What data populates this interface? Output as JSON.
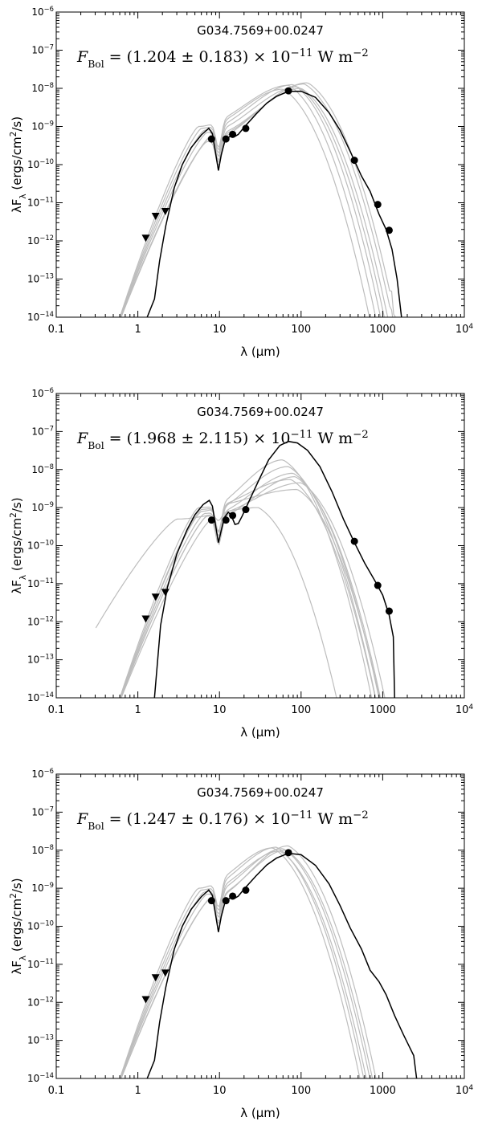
{
  "figure": {
    "panels": [
      {
        "label": "G034.7569+00.0247",
        "flux": {
          "symbol": "F",
          "sub": "Bol",
          "prefix": " = (1.204 ± 0.183) × 10",
          "exp": "−11",
          "units": " W m",
          "units_exp": "−2"
        }
      },
      {
        "label": "G034.7569+00.0247",
        "flux": {
          "symbol": "F",
          "sub": "Bol",
          "prefix": " = (1.968 ± 2.115) × 10",
          "exp": "−11",
          "units": " W m",
          "units_exp": "−2"
        }
      },
      {
        "label": "G034.7569+00.0247",
        "flux": {
          "symbol": "F",
          "sub": "Bol",
          "prefix": " = (1.247 ± 0.176) × 10",
          "exp": "−11",
          "units": " W m",
          "units_exp": "−2"
        }
      }
    ],
    "xlabel": "λ (μm)",
    "ylabel": "λF_λ (ergs/cm²/s)"
  },
  "chart_data": [
    {
      "type": "line",
      "title": "G034.7569+00.0247",
      "xscale": "log",
      "yscale": "log",
      "xlim": [
        0.1,
        10000
      ],
      "ylim": [
        1e-14,
        1e-06
      ],
      "xticks": [
        0.1,
        1,
        10,
        100,
        1000,
        10000
      ],
      "yticks": [
        1e-14,
        1e-13,
        1e-12,
        1e-11,
        1e-10,
        1e-09,
        1e-08,
        1e-07,
        1e-06
      ],
      "xlabel": "λ (μm)",
      "ylabel": "λF_λ (ergs/cm²/s)",
      "best_fit_color": "#000000",
      "model_color": "#bdbdbd",
      "detections": [
        [
          8.0,
          4.7e-10
        ],
        [
          12.0,
          4.7e-10
        ],
        [
          14.5,
          6.2e-10
        ],
        [
          21.0,
          8.9e-10
        ],
        [
          70.0,
          8.6e-09
        ],
        [
          450,
          1.3e-10
        ],
        [
          870,
          9e-12
        ],
        [
          1200,
          1.9e-12
        ]
      ],
      "upper_limits": [
        [
          1.25,
          1.2e-12
        ],
        [
          1.65,
          4.5e-12
        ],
        [
          2.17,
          6e-12
        ]
      ],
      "best_fit": [
        [
          1.3,
          1e-14
        ],
        [
          1.6,
          3e-14
        ],
        [
          1.85,
          3e-13
        ],
        [
          2.2,
          2.5e-12
        ],
        [
          2.8,
          2.5e-11
        ],
        [
          3.5,
          1e-10
        ],
        [
          4.5,
          2.8e-10
        ],
        [
          6.0,
          6e-10
        ],
        [
          7.4,
          9e-10
        ],
        [
          8.2,
          6.5e-10
        ],
        [
          9.7,
          7e-11
        ],
        [
          10.5,
          1.8e-10
        ],
        [
          11.6,
          4e-10
        ],
        [
          12.6,
          5e-10
        ],
        [
          14.0,
          5.8e-10
        ],
        [
          15.5,
          5.5e-10
        ],
        [
          17.0,
          6.2e-10
        ],
        [
          20.0,
          9.5e-10
        ],
        [
          28,
          2.1e-09
        ],
        [
          38,
          4.1e-09
        ],
        [
          50,
          6.2e-09
        ],
        [
          70,
          8.3e-09
        ],
        [
          100,
          8.4e-09
        ],
        [
          150,
          5.8e-09
        ],
        [
          220,
          2.3e-09
        ],
        [
          300,
          8e-10
        ],
        [
          400,
          2.2e-10
        ],
        [
          550,
          5e-11
        ],
        [
          700,
          2e-11
        ],
        [
          900,
          5e-12
        ],
        [
          1100,
          2e-12
        ],
        [
          1300,
          6e-13
        ],
        [
          1500,
          1e-13
        ],
        [
          1700,
          1e-14
        ]
      ],
      "models": [
        {
          "peak_x": 90,
          "peak_y": 1.1e-08,
          "nir_x": 7,
          "nir_y": 7e-10,
          "scale": 0.95
        },
        {
          "peak_x": 60,
          "peak_y": 9.5e-09,
          "nir_x": 6,
          "nir_y": 9e-10,
          "scale": 1.05
        },
        {
          "peak_x": 120,
          "peak_y": 1.4e-08,
          "nir_x": 7.5,
          "nir_y": 5e-10,
          "scale": 1.0
        },
        {
          "peak_x": 80,
          "peak_y": 1.25e-08,
          "nir_x": 6.5,
          "nir_y": 8e-10,
          "scale": 0.9
        },
        {
          "peak_x": 100,
          "peak_y": 1e-08,
          "nir_x": 8,
          "nir_y": 6e-10,
          "scale": 1.1
        },
        {
          "peak_x": 70,
          "peak_y": 1.2e-08,
          "nir_x": 5.5,
          "nir_y": 1e-09,
          "scale": 1.0
        },
        {
          "peak_x": 110,
          "peak_y": 1.3e-08,
          "nir_x": 7,
          "nir_y": 4e-10,
          "scale": 0.95
        }
      ]
    },
    {
      "type": "line",
      "title": "G034.7569+00.0247",
      "xscale": "log",
      "yscale": "log",
      "xlim": [
        0.1,
        10000
      ],
      "ylim": [
        1e-14,
        1e-06
      ],
      "xticks": [
        0.1,
        1,
        10,
        100,
        1000,
        10000
      ],
      "yticks": [
        1e-14,
        1e-13,
        1e-12,
        1e-11,
        1e-10,
        1e-09,
        1e-08,
        1e-07,
        1e-06
      ],
      "xlabel": "λ (μm)",
      "ylabel": "λF_λ (ergs/cm²/s)",
      "best_fit_color": "#000000",
      "model_color": "#bdbdbd",
      "detections": [
        [
          8.0,
          4.7e-10
        ],
        [
          12.0,
          4.7e-10
        ],
        [
          14.5,
          6.2e-10
        ],
        [
          21.0,
          8.9e-10
        ],
        [
          450,
          1.3e-10
        ],
        [
          870,
          9e-12
        ],
        [
          1200,
          1.9e-12
        ]
      ],
      "upper_limits": [
        [
          1.25,
          1.2e-12
        ],
        [
          1.65,
          4.5e-12
        ],
        [
          2.17,
          6e-12
        ]
      ],
      "best_fit": [
        [
          1.6,
          1e-14
        ],
        [
          1.9,
          8e-13
        ],
        [
          2.3,
          8e-12
        ],
        [
          3.0,
          6e-11
        ],
        [
          4.0,
          2.6e-10
        ],
        [
          5.0,
          6.5e-10
        ],
        [
          6.3,
          1.2e-09
        ],
        [
          7.5,
          1.55e-09
        ],
        [
          8.2,
          1.1e-09
        ],
        [
          9.7,
          1.2e-10
        ],
        [
          10.5,
          2.5e-10
        ],
        [
          11.5,
          5.5e-10
        ],
        [
          12.8,
          7.5e-10
        ],
        [
          13.8,
          6.5e-10
        ],
        [
          15.5,
          3.6e-10
        ],
        [
          17.0,
          3.8e-10
        ],
        [
          19.0,
          6e-10
        ],
        [
          22,
          1.2e-09
        ],
        [
          30,
          5e-09
        ],
        [
          40,
          1.8e-08
        ],
        [
          55,
          4.3e-08
        ],
        [
          70,
          5.5e-08
        ],
        [
          90,
          5e-08
        ],
        [
          120,
          3.2e-08
        ],
        [
          170,
          1.2e-08
        ],
        [
          240,
          2.6e-09
        ],
        [
          330,
          5e-10
        ],
        [
          450,
          1.2e-10
        ],
        [
          600,
          3.5e-11
        ],
        [
          800,
          1.2e-11
        ],
        [
          1000,
          5e-12
        ],
        [
          1200,
          1.5e-12
        ],
        [
          1350,
          4e-13
        ],
        [
          1400,
          1e-14
        ]
      ],
      "models": [
        {
          "peak_x": 75,
          "peak_y": 5.5e-09,
          "nir_x": 6,
          "nir_y": 9e-10,
          "scale": 1.2
        },
        {
          "peak_x": 80,
          "peak_y": 8e-09,
          "nir_x": 7,
          "nir_y": 6e-10,
          "scale": 1.0
        },
        {
          "peak_x": 90,
          "peak_y": 3e-09,
          "nir_x": 5.5,
          "nir_y": 1e-09,
          "scale": 1.3
        },
        {
          "peak_x": 70,
          "peak_y": 1.2e-08,
          "nir_x": 6.5,
          "nir_y": 7e-10,
          "scale": 1.1
        },
        {
          "peak_x": 85,
          "peak_y": 6.5e-09,
          "nir_x": 8,
          "nir_y": 5e-10,
          "scale": 0.9
        },
        {
          "peak_x": 60,
          "peak_y": 1.8e-08,
          "nir_x": 6,
          "nir_y": 8e-10,
          "scale": 1.0
        },
        {
          "peak_x": 100,
          "peak_y": 4.5e-09,
          "nir_x": 7,
          "nir_y": 6e-10,
          "scale": 1.15
        },
        {
          "peak_x": 30,
          "peak_y": 1e-09,
          "nir_x": 3,
          "nir_y": 5e-10,
          "scale": 2.6
        }
      ]
    },
    {
      "type": "line",
      "title": "G034.7569+00.0247",
      "xscale": "log",
      "yscale": "log",
      "xlim": [
        0.1,
        10000
      ],
      "ylim": [
        1e-14,
        1e-06
      ],
      "xticks": [
        0.1,
        1,
        10,
        100,
        1000,
        10000
      ],
      "yticks": [
        1e-14,
        1e-13,
        1e-12,
        1e-11,
        1e-10,
        1e-09,
        1e-08,
        1e-07,
        1e-06
      ],
      "xlabel": "λ (μm)",
      "ylabel": "λF_λ (ergs/cm²/s)",
      "best_fit_color": "#000000",
      "model_color": "#bdbdbd",
      "detections": [
        [
          8.0,
          4.7e-10
        ],
        [
          12.0,
          4.7e-10
        ],
        [
          14.5,
          6.2e-10
        ],
        [
          21.0,
          8.9e-10
        ],
        [
          70.0,
          8.6e-09
        ]
      ],
      "upper_limits": [
        [
          1.25,
          1.2e-12
        ],
        [
          1.65,
          4.5e-12
        ],
        [
          2.17,
          6e-12
        ]
      ],
      "best_fit": [
        [
          1.3,
          1e-14
        ],
        [
          1.6,
          3e-14
        ],
        [
          1.85,
          3e-13
        ],
        [
          2.2,
          2.5e-12
        ],
        [
          2.8,
          2.5e-11
        ],
        [
          3.5,
          1e-10
        ],
        [
          4.5,
          2.8e-10
        ],
        [
          6.0,
          6e-10
        ],
        [
          7.4,
          9e-10
        ],
        [
          8.2,
          6.5e-10
        ],
        [
          9.7,
          7e-11
        ],
        [
          10.5,
          1.8e-10
        ],
        [
          11.6,
          4e-10
        ],
        [
          12.6,
          5e-10
        ],
        [
          14.0,
          5.8e-10
        ],
        [
          15.5,
          5.5e-10
        ],
        [
          17.0,
          6.2e-10
        ],
        [
          20.0,
          9.5e-10
        ],
        [
          28,
          2.1e-09
        ],
        [
          38,
          4.1e-09
        ],
        [
          50,
          6.2e-09
        ],
        [
          70,
          8.3e-09
        ],
        [
          100,
          7.6e-09
        ],
        [
          150,
          4e-09
        ],
        [
          220,
          1.3e-09
        ],
        [
          300,
          3.5e-10
        ],
        [
          400,
          9e-11
        ],
        [
          550,
          2.5e-11
        ],
        [
          700,
          7e-12
        ],
        [
          900,
          3.5e-12
        ],
        [
          1100,
          1.6e-12
        ],
        [
          1400,
          4.5e-13
        ],
        [
          1800,
          1.4e-13
        ],
        [
          2400,
          4e-14
        ],
        [
          2600,
          1e-14
        ]
      ],
      "models": [
        {
          "peak_x": 60,
          "peak_y": 1.1e-08,
          "nir_x": 7,
          "nir_y": 7e-10,
          "scale": 0.9
        },
        {
          "peak_x": 50,
          "peak_y": 1.2e-08,
          "nir_x": 6,
          "nir_y": 9e-10,
          "scale": 0.95
        },
        {
          "peak_x": 70,
          "peak_y": 1.3e-08,
          "nir_x": 7.5,
          "nir_y": 5e-10,
          "scale": 1.0
        },
        {
          "peak_x": 55,
          "peak_y": 9.5e-09,
          "nir_x": 6.5,
          "nir_y": 8e-10,
          "scale": 0.85
        },
        {
          "peak_x": 65,
          "peak_y": 1e-08,
          "nir_x": 8,
          "nir_y": 6e-10,
          "scale": 1.05
        },
        {
          "peak_x": 45,
          "peak_y": 1.15e-08,
          "nir_x": 5.5,
          "nir_y": 1e-09,
          "scale": 0.9
        }
      ]
    }
  ]
}
